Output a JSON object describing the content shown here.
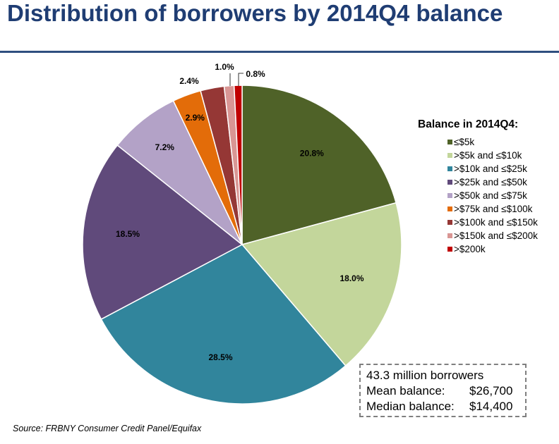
{
  "title": "Distribution of borrowers by 2014Q4 balance",
  "chart_data": {
    "type": "pie",
    "title": "Distribution of borrowers by 2014Q4 balance",
    "legend_title": "Balance in 2014Q4:",
    "legend_position": "right",
    "slices": [
      {
        "name": "≤$5k",
        "value": 20.8,
        "label": "20.8%",
        "color": "#4f6228"
      },
      {
        "name": ">$5k and ≤$10k",
        "value": 18.0,
        "label": "18.0%",
        "color": "#c3d69b"
      },
      {
        "name": ">$10k and ≤$25k",
        "value": 28.5,
        "label": "28.5%",
        "color": "#31859c"
      },
      {
        "name": ">$25k and ≤$50k",
        "value": 18.5,
        "label": "18.5%",
        "color": "#604a7b"
      },
      {
        "name": ">$50k and ≤$75k",
        "value": 7.2,
        "label": "7.2%",
        "color": "#b3a2c7"
      },
      {
        "name": ">$75k and ≤$100k",
        "value": 2.9,
        "label": "2.9%",
        "color": "#e36c09"
      },
      {
        "name": ">$100k and ≤$150k",
        "value": 2.4,
        "label": "2.4%",
        "color": "#953735"
      },
      {
        "name": ">$150k and ≤$200k",
        "value": 1.0,
        "label": "1.0%",
        "color": "#d99694"
      },
      {
        "name": ">$200k",
        "value": 0.8,
        "label": "0.8%",
        "color": "#c00000"
      }
    ]
  },
  "stats": {
    "borrowers": "43.3 million borrowers",
    "mean_label": "Mean balance:",
    "mean_value": "$26,700",
    "median_label": "Median balance:",
    "median_value": "$14,400"
  },
  "source": "Source: FRBNY Consumer Credit Panel/Equifax"
}
